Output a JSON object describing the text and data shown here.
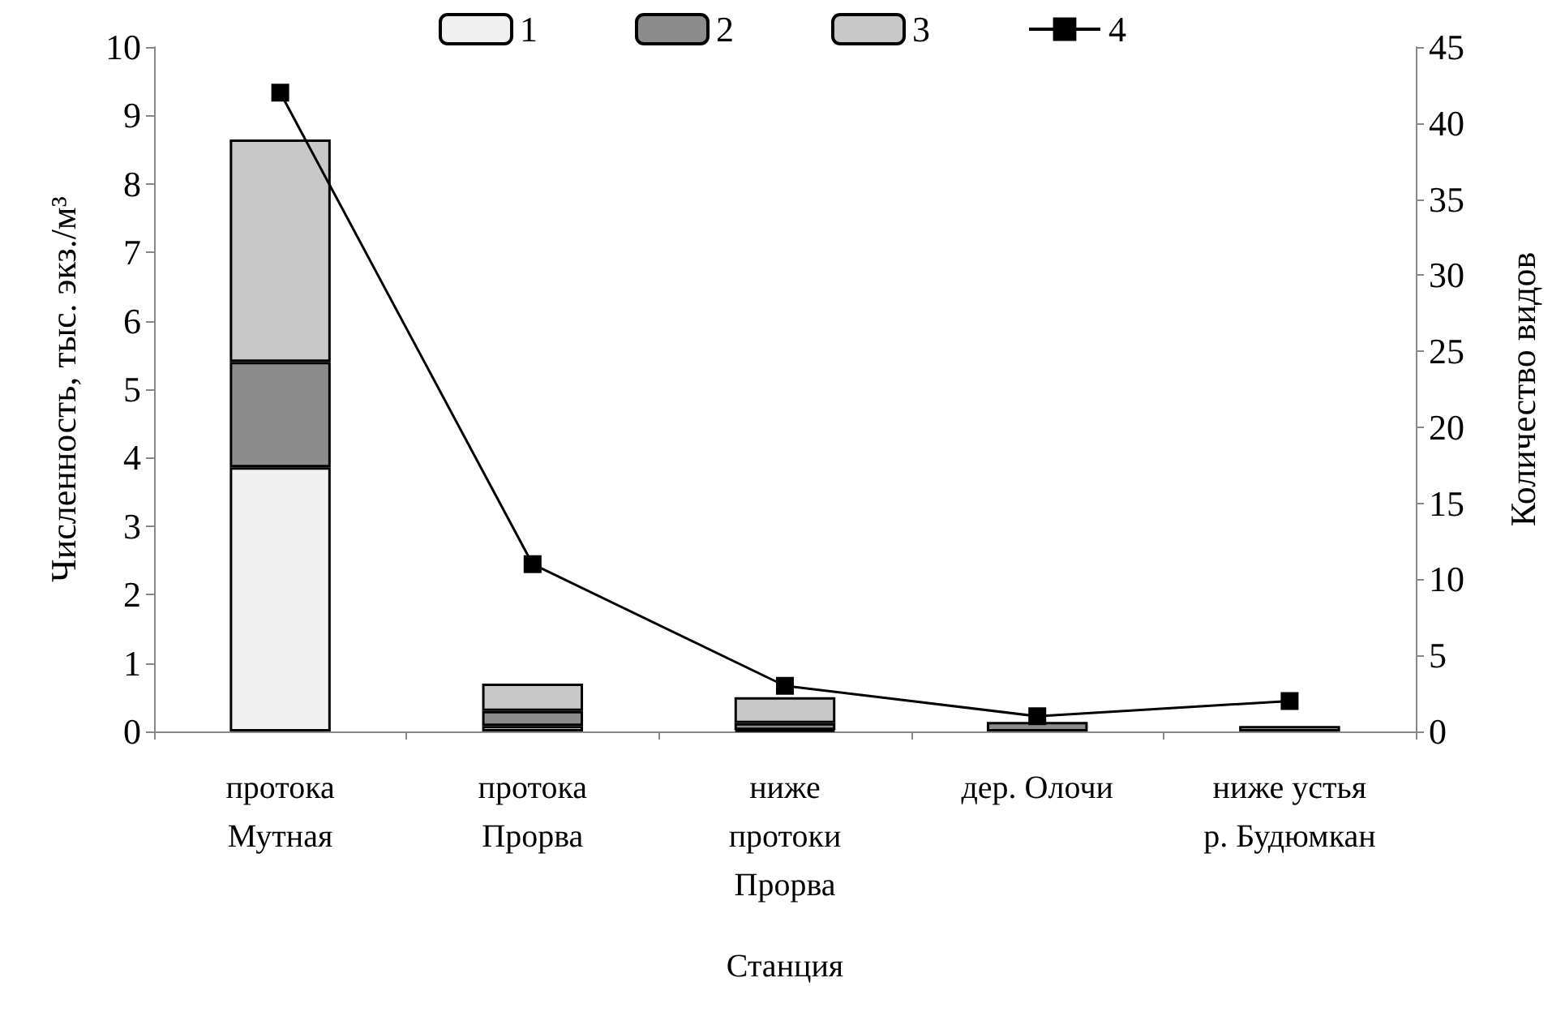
{
  "chart_data": {
    "type": "bar",
    "stacked": true,
    "xlabel": "Станция",
    "ylabel": "Численность, тыс. экз./м³",
    "y2label": "Количество видов",
    "categories": [
      "протока\nМутная",
      "протока\nПрорва",
      "ниже\nпротоки\nПрорва",
      "дер. Олочи",
      "ниже устья\nр. Будюмкан"
    ],
    "series": [
      {
        "name": "1",
        "color": "#f0f0f0",
        "values": [
          3.86,
          0.08,
          0.02,
          null,
          null
        ]
      },
      {
        "name": "2",
        "color": "#8c8c8c",
        "values": [
          1.54,
          0.22,
          0.1,
          0.14,
          null
        ]
      },
      {
        "name": "3",
        "color": "#c8c8c8",
        "values": [
          3.25,
          0.4,
          0.38,
          null,
          0.08
        ]
      },
      {
        "name": "4",
        "type": "line",
        "axis": "y2",
        "color": "#000000",
        "marker": "square",
        "values": [
          42,
          11,
          3,
          1,
          2
        ]
      }
    ],
    "ylim": [
      0,
      10
    ],
    "yticks": [
      0,
      1,
      2,
      3,
      4,
      5,
      6,
      7,
      8,
      9,
      10
    ],
    "y2lim": [
      0,
      45
    ],
    "y2ticks": [
      0,
      5,
      10,
      15,
      20,
      25,
      30,
      35,
      40,
      45
    ],
    "grid": false,
    "legend": "top"
  }
}
